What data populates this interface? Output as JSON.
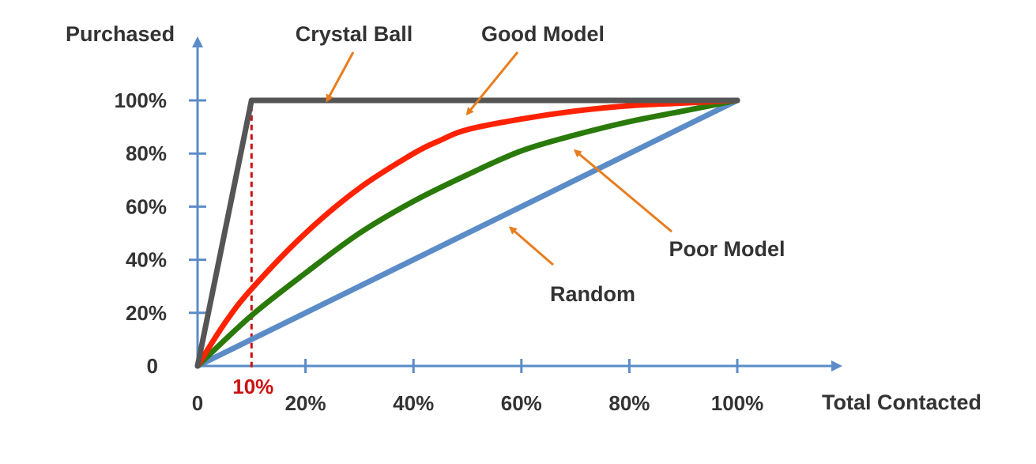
{
  "chart_data": {
    "type": "line",
    "xlabel": "Total Contacted",
    "ylabel": "Purchased",
    "xlim": [
      0,
      100
    ],
    "ylim": [
      0,
      100
    ],
    "x_ticks": [
      {
        "value": 0,
        "label": "0"
      },
      {
        "value": 20,
        "label": "20%"
      },
      {
        "value": 40,
        "label": "40%"
      },
      {
        "value": 60,
        "label": "60%"
      },
      {
        "value": 80,
        "label": "80%"
      },
      {
        "value": 100,
        "label": "100%"
      }
    ],
    "y_ticks": [
      {
        "value": 0,
        "label": "0"
      },
      {
        "value": 20,
        "label": "20%"
      },
      {
        "value": 40,
        "label": "40%"
      },
      {
        "value": 60,
        "label": "60%"
      },
      {
        "value": 80,
        "label": "80%"
      },
      {
        "value": 100,
        "label": "100%"
      }
    ],
    "grid": false,
    "legend": "none",
    "series": [
      {
        "name": "Crystal Ball",
        "color": "#555555",
        "x": [
          0,
          10,
          100
        ],
        "y": [
          0,
          100,
          100
        ]
      },
      {
        "name": "Good Model",
        "color": "#ff2200",
        "x": [
          0,
          5,
          10,
          20,
          30,
          40,
          45,
          50,
          60,
          70,
          80,
          90,
          100
        ],
        "y": [
          0,
          16,
          29,
          50,
          67,
          80,
          85,
          89,
          93,
          96,
          98,
          99,
          100
        ]
      },
      {
        "name": "Poor Model",
        "color": "#2a7a0a",
        "x": [
          0,
          10,
          20,
          30,
          40,
          50,
          60,
          70,
          80,
          90,
          100
        ],
        "y": [
          0,
          19,
          35,
          50,
          62,
          72,
          81,
          87,
          92,
          96,
          100
        ]
      },
      {
        "name": "Random",
        "color": "#5b8cc8",
        "x": [
          0,
          100
        ],
        "y": [
          0,
          100
        ]
      }
    ],
    "annotations": [
      {
        "text": "Crystal Ball",
        "series": "Crystal Ball",
        "arrow_to": [
          24,
          100
        ]
      },
      {
        "text": "Good Model",
        "series": "Good Model",
        "arrow_to": [
          50,
          95
        ]
      },
      {
        "text": "Poor Model",
        "series": "Poor Model",
        "arrow_to": [
          70,
          81
        ]
      },
      {
        "text": "Random",
        "series": "Random",
        "arrow_to": [
          58,
          52
        ]
      }
    ],
    "marker": {
      "x": 10,
      "label": "10%",
      "color": "#cc1111"
    },
    "axis_color": "#5b8cc8",
    "arrow_color": "#e87d1e"
  }
}
